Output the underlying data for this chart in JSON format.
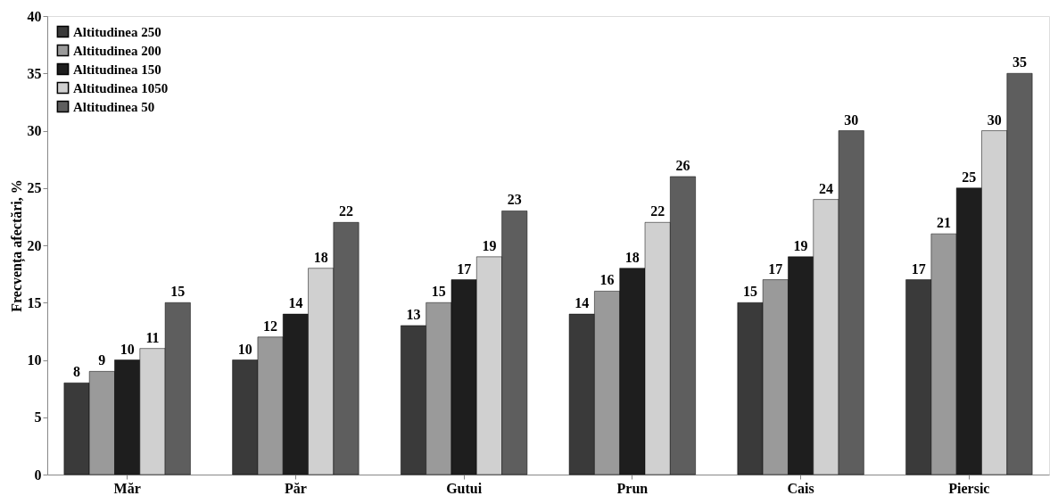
{
  "chart_data": {
    "type": "bar",
    "ylabel": "Frecvența afectări, %",
    "categories": [
      "Măr",
      "Păr",
      "Gutui",
      "Prun",
      "Cais",
      "Piersic"
    ],
    "series": [
      {
        "name": "Altitudinea 250",
        "color": "#3a3a3a",
        "values": [
          8,
          10,
          13,
          14,
          15,
          17
        ]
      },
      {
        "name": "Altitudinea 200",
        "color": "#9a9a9a",
        "values": [
          9,
          12,
          15,
          16,
          17,
          21
        ]
      },
      {
        "name": "Altitudinea 150",
        "color": "#1e1e1e",
        "values": [
          10,
          14,
          17,
          18,
          19,
          25
        ]
      },
      {
        "name": "Altitudinea 1050",
        "color": "#d0d0d0",
        "values": [
          11,
          18,
          19,
          22,
          24,
          30
        ]
      },
      {
        "name": "Altitudinea 50",
        "color": "#5e5e5e",
        "values": [
          15,
          22,
          23,
          26,
          30,
          35
        ]
      }
    ],
    "ylim": [
      0,
      40
    ],
    "yticks": [
      0,
      5,
      10,
      15,
      20,
      25,
      30,
      35,
      40
    ],
    "data_labels": true,
    "legend": "top left"
  }
}
